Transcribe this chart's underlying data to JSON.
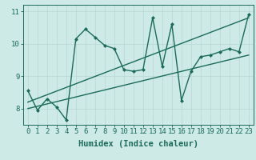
{
  "title": "",
  "xlabel": "Humidex (Indice chaleur)",
  "ylabel": "",
  "bg_color": "#cdeae6",
  "grid_color": "#b8d8d4",
  "line_color": "#1a6b5a",
  "xlim": [
    -0.5,
    23.5
  ],
  "ylim": [
    7.5,
    11.2
  ],
  "yticks": [
    8,
    9,
    10,
    11
  ],
  "xticks": [
    0,
    1,
    2,
    3,
    4,
    5,
    6,
    7,
    8,
    9,
    10,
    11,
    12,
    13,
    14,
    15,
    16,
    17,
    18,
    19,
    20,
    21,
    22,
    23
  ],
  "series1_x": [
    0,
    1,
    2,
    3,
    4,
    5,
    6,
    7,
    8,
    9,
    10,
    11,
    12,
    13,
    14,
    15,
    16,
    17,
    18,
    19,
    20,
    21,
    22,
    23
  ],
  "series1_y": [
    8.55,
    7.95,
    8.3,
    8.05,
    7.65,
    10.15,
    10.45,
    10.2,
    9.95,
    9.85,
    9.2,
    9.15,
    9.2,
    10.8,
    9.3,
    10.6,
    8.25,
    9.15,
    9.6,
    9.65,
    9.75,
    9.85,
    9.75,
    10.9
  ],
  "series2_x": [
    0,
    23
  ],
  "series2_y": [
    8.2,
    10.8
  ],
  "series3_x": [
    0,
    23
  ],
  "series3_y": [
    8.0,
    9.65
  ],
  "marker_size": 2.5,
  "linewidth": 1.0,
  "font_size_label": 7.5,
  "font_size_tick": 6.5
}
